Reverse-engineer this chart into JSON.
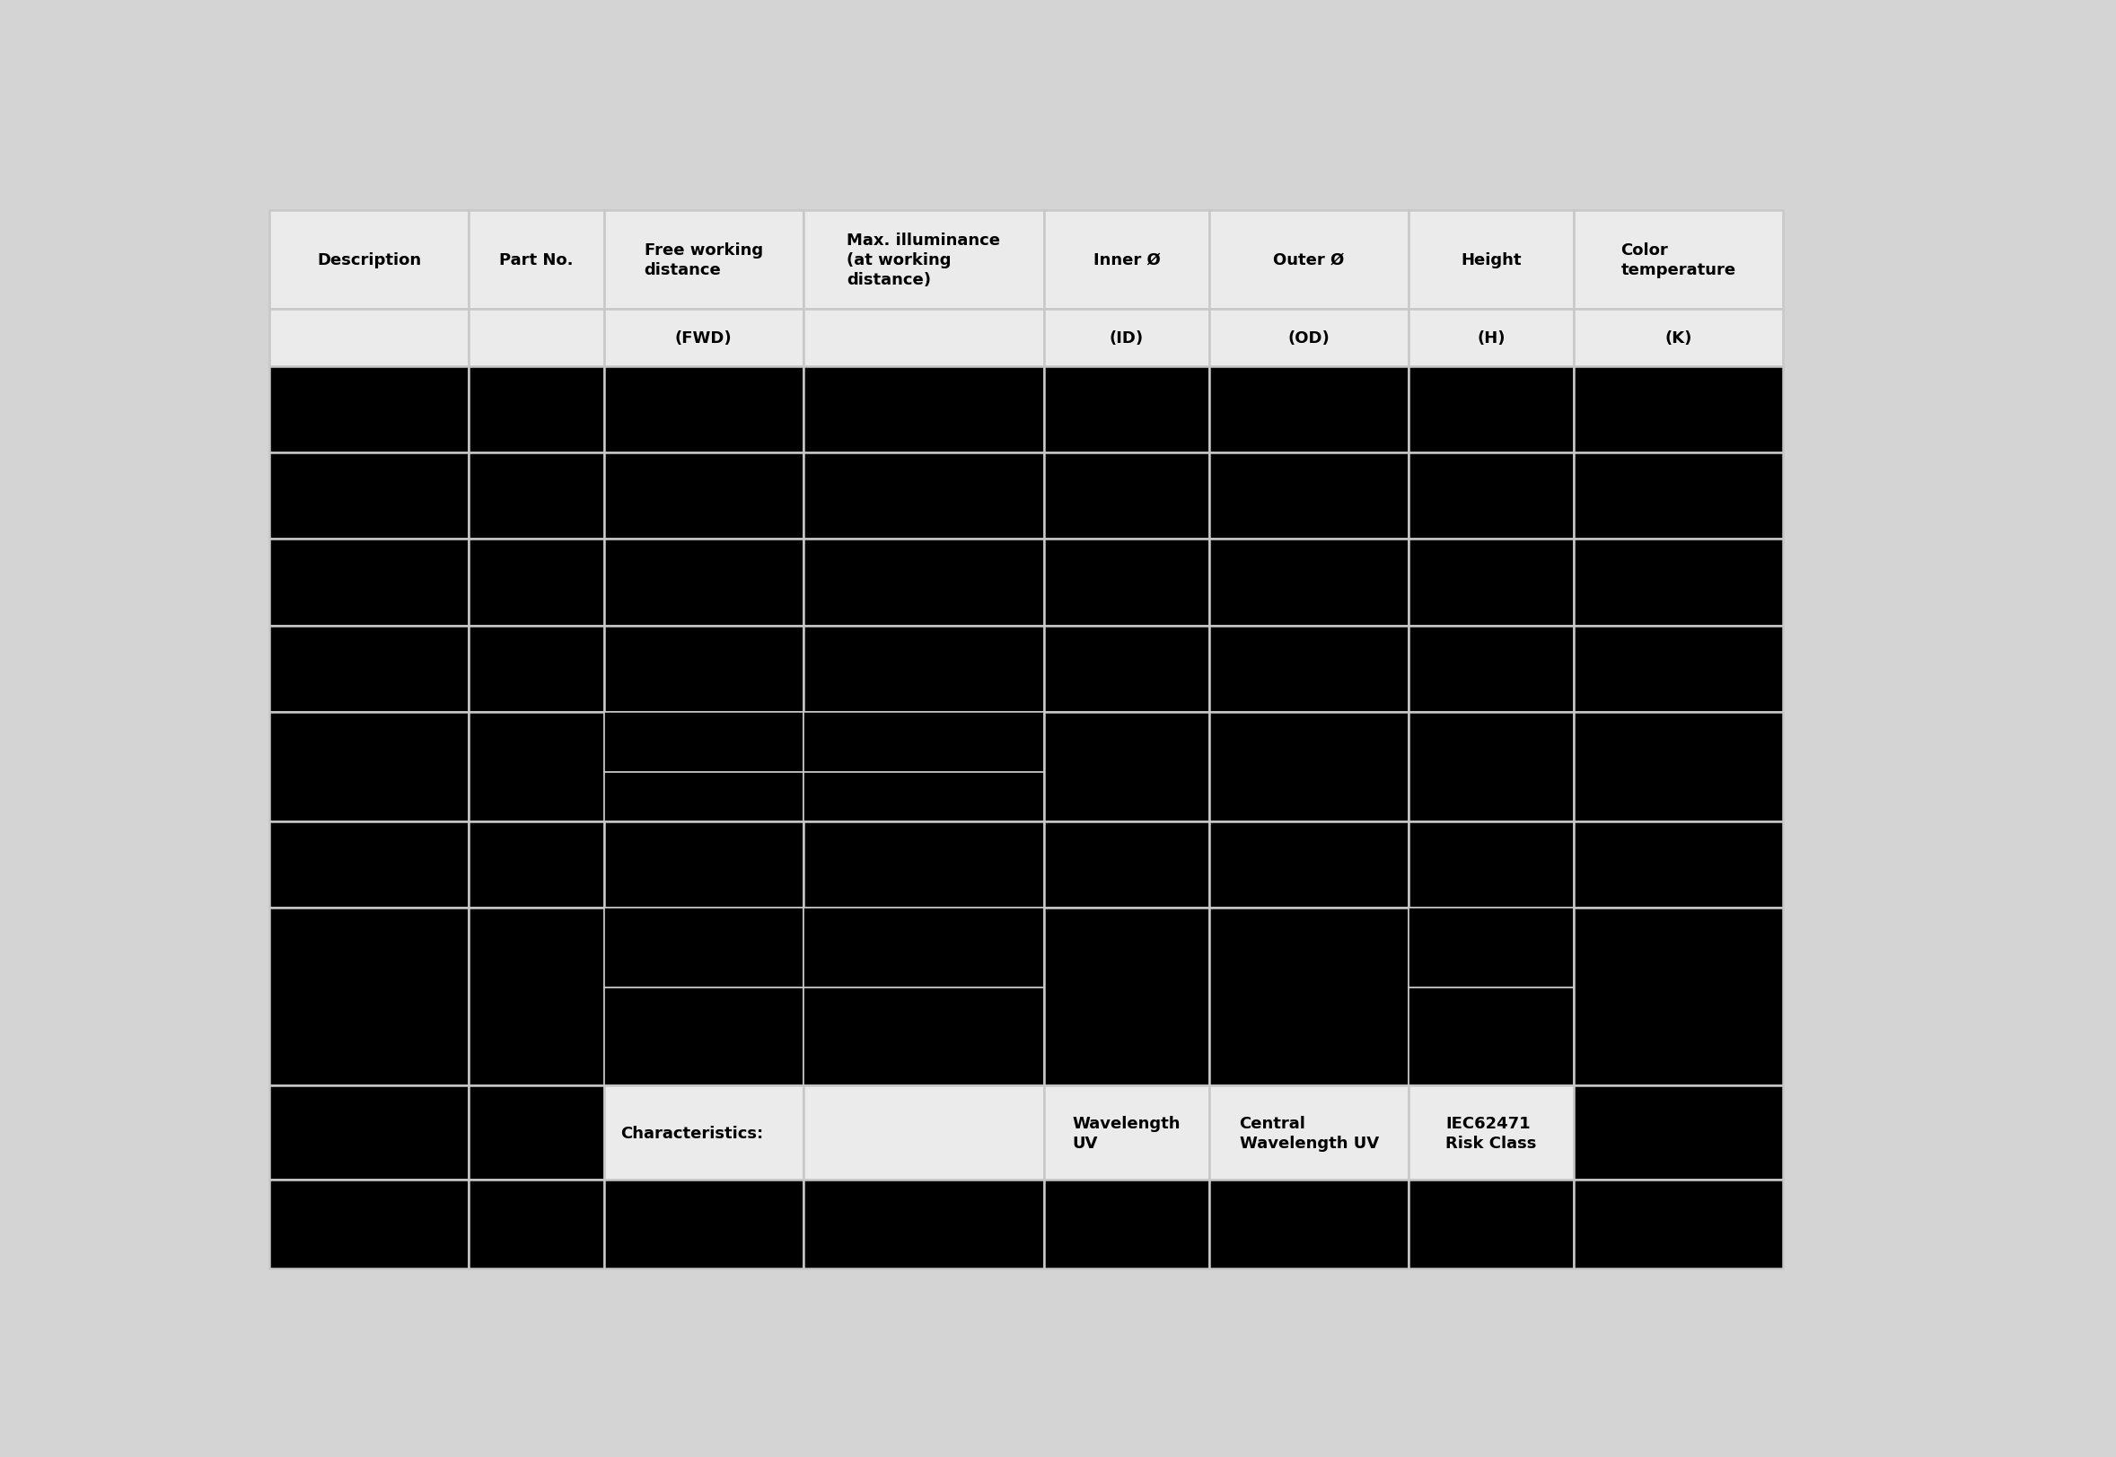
{
  "header_row1": [
    "Description",
    "Part No.",
    "Free working\ndistance",
    "Max. illuminance\n(at working\ndistance)",
    "Inner Ø",
    "Outer Ø",
    "Height",
    "Color\ntemperature"
  ],
  "header_row2": [
    "",
    "",
    "(FWD)",
    "",
    "(ID)",
    "(OD)",
    "(H)",
    "(K)"
  ],
  "characteristics_row": [
    "",
    "",
    "Characteristics:",
    "",
    "Wavelength\nUV",
    "Central\nWavelength UV",
    "IEC62471\nRisk Class",
    ""
  ],
  "col_widths_rel": [
    1.45,
    0.98,
    1.45,
    1.75,
    1.2,
    1.45,
    1.2,
    1.52
  ],
  "header_bg": "#ebebeb",
  "data_bg": "#000000",
  "characteristics_bg": "#ebebeb",
  "grid_color": "#c8c8c8",
  "separator_color": "#c0c0c0",
  "text_color": "#000000",
  "font_size_header": 13,
  "outer_bg": "#d4d4d4"
}
